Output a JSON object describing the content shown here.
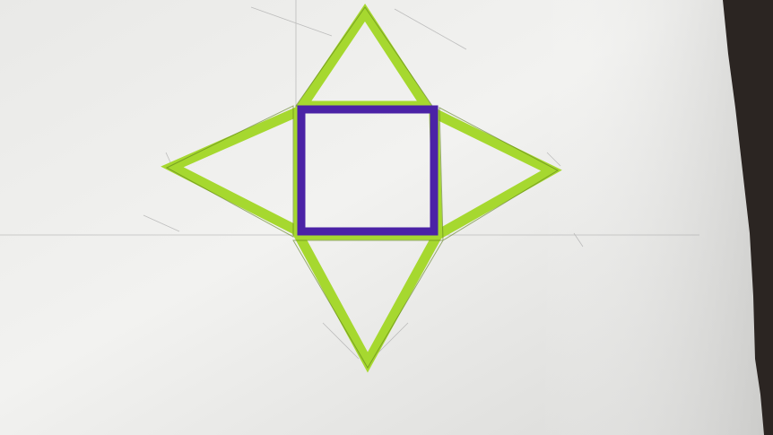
{
  "photo": {
    "subject": "",
    "colors": {
      "paper_light": "#f1f1ef",
      "paper_shadow": "#cfcfcd",
      "green_marker": "#a6d82f",
      "green_edge": "#7fb31c",
      "purple_marker": "#4b22a6",
      "pencil": "#9a9a9a",
      "dark_edge": "#2a2522"
    }
  }
}
